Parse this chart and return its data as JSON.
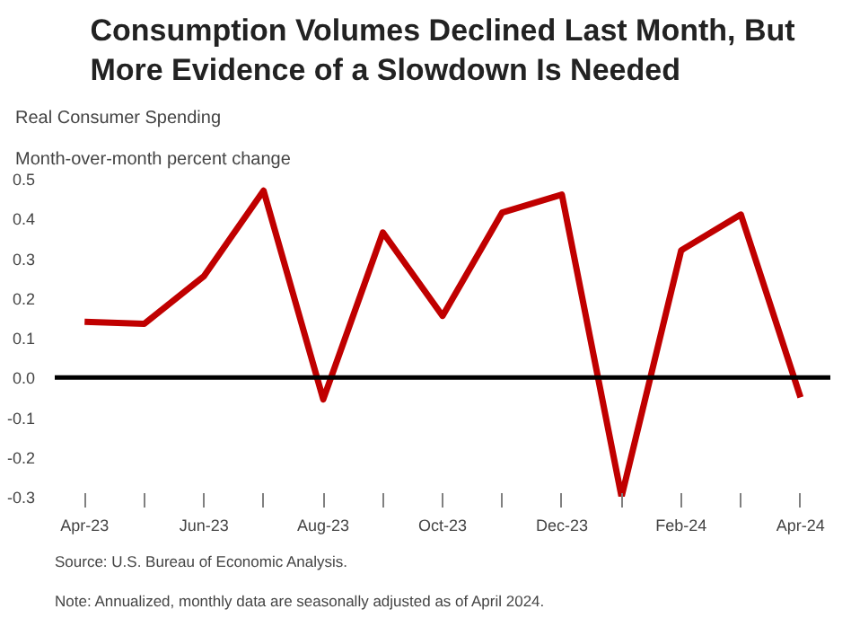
{
  "chart_data": {
    "type": "line",
    "title": "Consumption Volumes Declined Last Month, But\nMore Evidence of a Slowdown Is Needed",
    "subtitle": "Real Consumer Spending",
    "ylabel": "Month-over-month percent change",
    "categories": [
      "Apr-23",
      null,
      "Jun-23",
      null,
      "Aug-23",
      null,
      "Oct-23",
      null,
      "Dec-23",
      null,
      "Feb-24",
      null,
      "Apr-24"
    ],
    "series": [
      {
        "color": "#c00000",
        "values": [
          0.14,
          0.135,
          0.255,
          0.47,
          -0.055,
          0.365,
          0.155,
          0.415,
          0.46,
          -0.3,
          0.32,
          0.41,
          -0.05
        ]
      }
    ],
    "ylim": [
      -0.3,
      0.5
    ],
    "yticks": [
      {
        "value": -0.3,
        "label": "-0.3"
      },
      {
        "value": -0.2,
        "label": "-0.2"
      },
      {
        "value": -0.1,
        "label": "-0.1"
      },
      {
        "value": 0,
        "label": "0.0"
      },
      {
        "value": 0.1,
        "label": "0.1"
      },
      {
        "value": 0.2,
        "label": "0.2"
      },
      {
        "value": 0.3,
        "label": "0.3"
      },
      {
        "value": 0.4,
        "label": "0.4"
      },
      {
        "value": 0.5,
        "label": "0.5"
      }
    ],
    "ref_lines": [
      {
        "axis": "y",
        "value": 0,
        "color": "#000000"
      }
    ],
    "grid": false,
    "marker": "none",
    "line_style": "solid",
    "annotations": [
      "Source: U.S. Bureau of Economic Analysis.",
      "Note: Annualized, monthly data are seasonally adjusted as of April 2024."
    ]
  }
}
